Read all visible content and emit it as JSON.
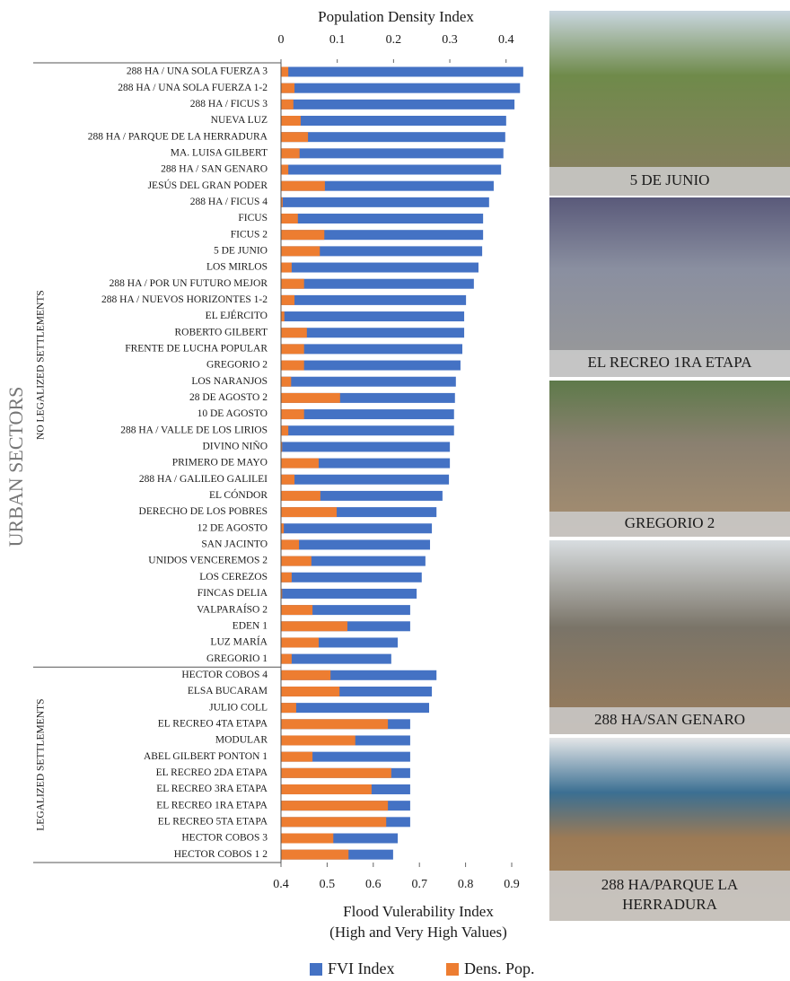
{
  "chart_data": {
    "type": "hbar",
    "x2label": "Population Density Index",
    "xlabel": [
      "Flood Vulerability Index",
      "(High and Very High Values)"
    ],
    "ylabel": "URBAN SECTORS",
    "groups": [
      {
        "label": "NO LEGALIZED SETTLEMENTS",
        "count": 37
      },
      {
        "label": "LEGALIZED SETTLEMENTS",
        "count": 12
      }
    ],
    "categories": [
      "288 HA / UNA SOLA FUERZA 3",
      "288 HA / UNA SOLA FUERZA 1-2",
      "288 HA / FICUS 3",
      "NUEVA LUZ",
      "288 HA / PARQUE DE LA HERRADURA",
      "MA. LUISA GILBERT",
      "288 HA / SAN GENARO",
      "JESÚS DEL GRAN PODER",
      "288 HA / FICUS 4",
      "FICUS",
      "FICUS 2",
      "5 DE JUNIO",
      "LOS MIRLOS",
      "288 HA / POR UN FUTURO MEJOR",
      "288 HA / NUEVOS HORIZONTES 1-2",
      "EL EJÉRCITO",
      "ROBERTO GILBERT",
      "FRENTE DE LUCHA POPULAR",
      "GREGORIO 2",
      "LOS NARANJOS",
      "28 DE AGOSTO 2",
      "10 DE AGOSTO",
      "288 HA / VALLE DE LOS LIRIOS",
      "DIVINO NIÑO",
      "PRIMERO DE MAYO",
      "288 HA / GALILEO GALILEI",
      "EL CÓNDOR",
      "DERECHO DE LOS POBRES",
      "12 DE AGOSTO",
      "SAN JACINTO",
      "UNIDOS VENCEREMOS 2",
      "LOS CEREZOS",
      "FINCAS DELIA",
      "VALPARAÍSO 2",
      "EDEN 1",
      "LUZ MARÍA",
      "GREGORIO 1",
      "HECTOR COBOS 4",
      "ELSA BUCARAM",
      "JULIO COLL",
      "EL RECREO 4TA ETAPA",
      "MODULAR",
      "ABEL GILBERT PONTON 1",
      "EL RECREO 2DA ETAPA",
      "EL RECREO 3RA ETAPA",
      "EL RECREO 1RA ETAPA",
      "EL RECREO 5TA ETAPA",
      "HECTOR COBOS 3",
      "HECTOR COBOS 1 2"
    ],
    "series": [
      {
        "name": "FVI Index",
        "color": "#4472c4",
        "axis": "x",
        "values": [
          0.925,
          0.918,
          0.906,
          0.888,
          0.886,
          0.882,
          0.877,
          0.861,
          0.851,
          0.838,
          0.838,
          0.836,
          0.828,
          0.818,
          0.801,
          0.797,
          0.797,
          0.793,
          0.789,
          0.779,
          0.777,
          0.775,
          0.775,
          0.766,
          0.766,
          0.764,
          0.75,
          0.737,
          0.727,
          0.723,
          0.713,
          0.705,
          0.694,
          0.68,
          0.68,
          0.653,
          0.639,
          0.737,
          0.727,
          0.721,
          0.68,
          0.68,
          0.68,
          0.68,
          0.68,
          0.68,
          0.68,
          0.653,
          0.643
        ]
      },
      {
        "name": "Dens. Pop.",
        "color": "#ed7d31",
        "axis": "x2",
        "values": [
          0.013,
          0.024,
          0.022,
          0.035,
          0.048,
          0.033,
          0.013,
          0.078,
          0.003,
          0.03,
          0.077,
          0.069,
          0.019,
          0.041,
          0.024,
          0.006,
          0.046,
          0.041,
          0.041,
          0.018,
          0.105,
          0.041,
          0.013,
          0.002,
          0.067,
          0.024,
          0.07,
          0.099,
          0.005,
          0.032,
          0.054,
          0.019,
          0.002,
          0.056,
          0.118,
          0.067,
          0.019,
          0.088,
          0.104,
          0.027,
          0.19,
          0.132,
          0.056,
          0.196,
          0.161,
          0.19,
          0.187,
          0.093,
          0.12
        ]
      }
    ],
    "xlim": [
      0.4,
      0.9
    ],
    "xticks": [
      0.4,
      0.5,
      0.6,
      0.7,
      0.8,
      0.9
    ],
    "x2lim": [
      0,
      0.41
    ],
    "x2ticks": [
      0,
      0.1,
      0.2,
      0.3,
      0.4
    ],
    "legend": "bottom"
  },
  "photos": [
    {
      "caption": [
        "5 DE JUNIO"
      ]
    },
    {
      "caption": [
        "EL RECREO 1RA ETAPA"
      ]
    },
    {
      "caption": [
        "GREGORIO 2"
      ]
    },
    {
      "caption": [
        "288 HA/SAN GENARO"
      ]
    },
    {
      "caption": [
        "288 HA/PARQUE LA",
        "HERRADURA"
      ]
    }
  ]
}
